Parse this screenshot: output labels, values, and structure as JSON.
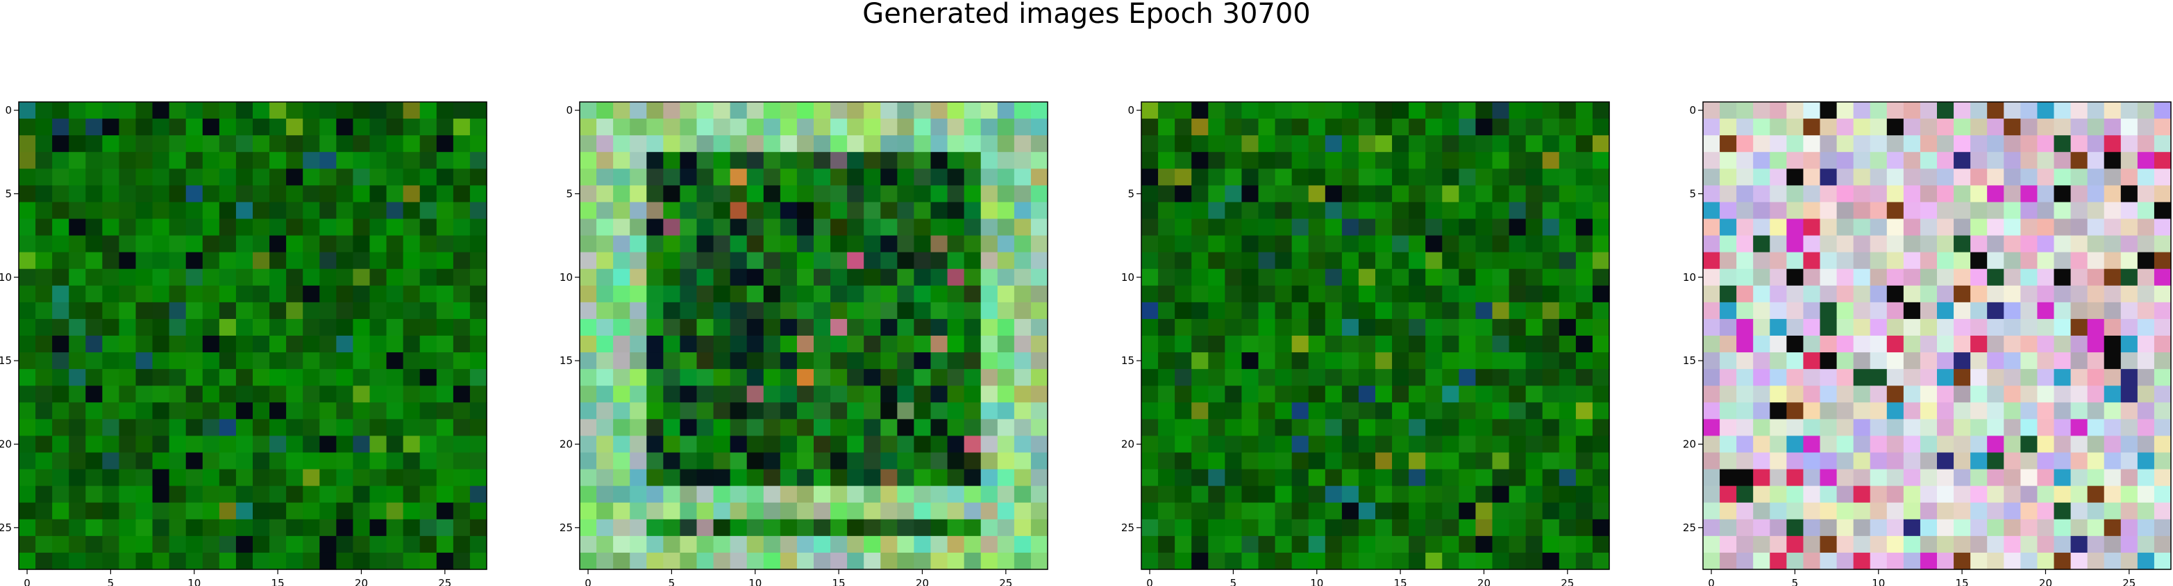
{
  "figure": {
    "title": "Generated images Epoch 30700"
  },
  "chart_data": [
    {
      "type": "heatmap",
      "panel": 1,
      "rows": 28,
      "cols": 28,
      "palette": "green-noise",
      "xticks": [
        "0",
        "5",
        "10",
        "15",
        "20",
        "25"
      ],
      "yticks": [
        "0",
        "5",
        "10",
        "15",
        "20",
        "25"
      ]
    },
    {
      "type": "heatmap",
      "panel": 2,
      "rows": 28,
      "cols": 28,
      "palette": "green-frame",
      "xticks": [
        "0",
        "5",
        "10",
        "15",
        "20",
        "25"
      ],
      "yticks": [
        "0",
        "5",
        "10",
        "15",
        "20",
        "25"
      ]
    },
    {
      "type": "heatmap",
      "panel": 3,
      "rows": 28,
      "cols": 28,
      "palette": "green-noise",
      "xticks": [
        "0",
        "5",
        "10",
        "15",
        "20",
        "25"
      ],
      "yticks": [
        "0",
        "5",
        "10",
        "15",
        "20",
        "25"
      ]
    },
    {
      "type": "heatmap",
      "panel": 4,
      "rows": 28,
      "cols": 28,
      "palette": "pastel-multicolor",
      "xticks": [
        "0",
        "5",
        "10",
        "15",
        "20",
        "25"
      ],
      "yticks": [
        "0",
        "5",
        "10",
        "15",
        "20",
        "25"
      ]
    }
  ]
}
